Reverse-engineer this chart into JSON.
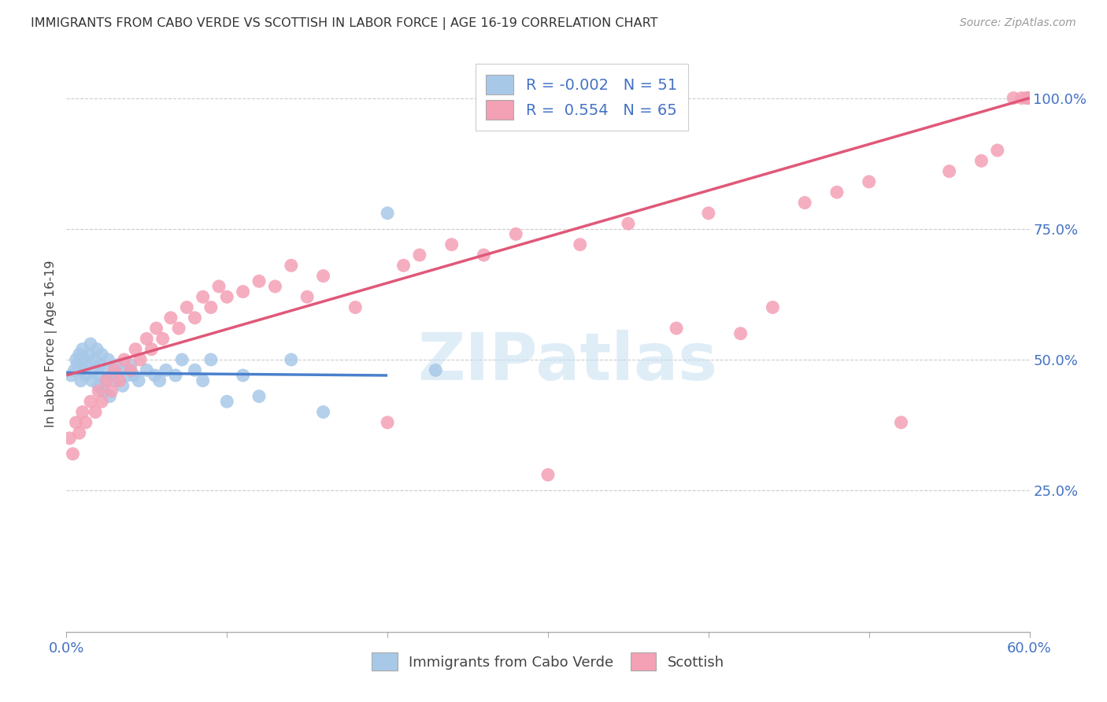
{
  "title": "IMMIGRANTS FROM CABO VERDE VS SCOTTISH IN LABOR FORCE | AGE 16-19 CORRELATION CHART",
  "source": "Source: ZipAtlas.com",
  "ylabel": "In Labor Force | Age 16-19",
  "cabo_verde_label": "Immigrants from Cabo Verde",
  "scottish_label": "Scottish",
  "xlim": [
    0.0,
    0.6
  ],
  "ylim": [
    -0.02,
    1.08
  ],
  "cabo_verde_R": -0.002,
  "cabo_verde_N": 51,
  "scottish_R": 0.554,
  "scottish_N": 65,
  "cabo_verde_color": "#a8c8e8",
  "scottish_color": "#f4a0b5",
  "cabo_verde_line_color": "#4a80cc",
  "scottish_line_color": "#e05878",
  "axis_color": "#4472c4",
  "grid_color": "#cccccc",
  "background_color": "#ffffff",
  "cabo_verde_x": [
    0.003,
    0.005,
    0.006,
    0.007,
    0.008,
    0.009,
    0.01,
    0.01,
    0.011,
    0.012,
    0.013,
    0.014,
    0.015,
    0.016,
    0.017,
    0.018,
    0.019,
    0.02,
    0.02,
    0.021,
    0.022,
    0.023,
    0.024,
    0.025,
    0.026,
    0.027,
    0.028,
    0.03,
    0.032,
    0.034,
    0.035,
    0.038,
    0.04,
    0.042,
    0.045,
    0.05,
    0.055,
    0.058,
    0.062,
    0.068,
    0.072,
    0.08,
    0.085,
    0.09,
    0.1,
    0.11,
    0.12,
    0.14,
    0.16,
    0.2,
    0.23
  ],
  "cabo_verde_y": [
    0.47,
    0.48,
    0.5,
    0.49,
    0.51,
    0.46,
    0.52,
    0.48,
    0.5,
    0.47,
    0.49,
    0.51,
    0.53,
    0.46,
    0.48,
    0.5,
    0.52,
    0.45,
    0.47,
    0.49,
    0.51,
    0.44,
    0.46,
    0.48,
    0.5,
    0.43,
    0.47,
    0.46,
    0.49,
    0.48,
    0.45,
    0.47,
    0.49,
    0.47,
    0.46,
    0.48,
    0.47,
    0.46,
    0.48,
    0.47,
    0.5,
    0.48,
    0.46,
    0.5,
    0.42,
    0.47,
    0.43,
    0.5,
    0.4,
    0.78,
    0.48
  ],
  "scottish_x": [
    0.002,
    0.004,
    0.006,
    0.008,
    0.01,
    0.012,
    0.015,
    0.018,
    0.02,
    0.022,
    0.025,
    0.028,
    0.03,
    0.033,
    0.036,
    0.04,
    0.043,
    0.046,
    0.05,
    0.053,
    0.056,
    0.06,
    0.065,
    0.07,
    0.075,
    0.08,
    0.085,
    0.09,
    0.095,
    0.1,
    0.11,
    0.12,
    0.13,
    0.14,
    0.15,
    0.16,
    0.18,
    0.2,
    0.21,
    0.22,
    0.24,
    0.26,
    0.28,
    0.3,
    0.32,
    0.35,
    0.38,
    0.4,
    0.42,
    0.44,
    0.46,
    0.48,
    0.5,
    0.52,
    0.55,
    0.57,
    0.58,
    0.59,
    0.595,
    0.598,
    0.6,
    0.6,
    0.6,
    0.6,
    0.6
  ],
  "scottish_y": [
    0.35,
    0.32,
    0.38,
    0.36,
    0.4,
    0.38,
    0.42,
    0.4,
    0.44,
    0.42,
    0.46,
    0.44,
    0.48,
    0.46,
    0.5,
    0.48,
    0.52,
    0.5,
    0.54,
    0.52,
    0.56,
    0.54,
    0.58,
    0.56,
    0.6,
    0.58,
    0.62,
    0.6,
    0.64,
    0.62,
    0.63,
    0.65,
    0.64,
    0.68,
    0.62,
    0.66,
    0.6,
    0.38,
    0.68,
    0.7,
    0.72,
    0.7,
    0.74,
    0.28,
    0.72,
    0.76,
    0.56,
    0.78,
    0.55,
    0.6,
    0.8,
    0.82,
    0.84,
    0.38,
    0.86,
    0.88,
    0.9,
    1.0,
    1.0,
    1.0,
    1.0,
    1.0,
    1.0,
    1.0,
    1.0
  ],
  "cv_line_x": [
    0.0,
    0.2
  ],
  "cv_line_y": [
    0.475,
    0.47
  ],
  "sc_line_x": [
    0.0,
    0.6
  ],
  "sc_line_y": [
    0.47,
    1.0
  ],
  "ytick_positions": [
    0.25,
    0.5,
    0.75,
    1.0
  ],
  "ytick_labels": [
    "25.0%",
    "50.0%",
    "75.0%",
    "100.0%"
  ],
  "xtick_positions": [
    0.0,
    0.1,
    0.2,
    0.3,
    0.4,
    0.5,
    0.6
  ],
  "xtick_labels": [
    "0.0%",
    "",
    "",
    "",
    "",
    "",
    "60.0%"
  ]
}
